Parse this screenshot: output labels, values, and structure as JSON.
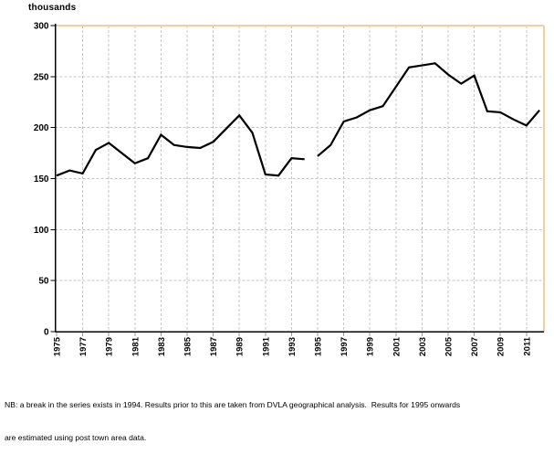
{
  "chart_data": {
    "type": "line",
    "title": "",
    "ylabel": "thousands",
    "xlabel": "",
    "ylim": [
      0,
      300
    ],
    "xlim": [
      1975,
      2012
    ],
    "grid": true,
    "legend": "none",
    "line_color": "#000000",
    "grid_color": "#c6c6c6",
    "border_accent_color": "#f6cea4",
    "yticks": [
      0,
      50,
      100,
      150,
      200,
      250,
      300
    ],
    "xticks": [
      1975,
      1977,
      1979,
      1981,
      1983,
      1985,
      1987,
      1989,
      1991,
      1993,
      1995,
      1997,
      1999,
      2001,
      2003,
      2005,
      2007,
      2009,
      2011
    ],
    "series": [
      {
        "name": "1975-1994 (DVLA geographical analysis)",
        "x": [
          1975,
          1976,
          1977,
          1978,
          1979,
          1980,
          1981,
          1982,
          1983,
          1984,
          1985,
          1986,
          1987,
          1988,
          1989,
          1990,
          1991,
          1992,
          1993,
          1994
        ],
        "values": [
          153,
          158,
          155,
          178,
          185,
          175,
          165,
          170,
          193,
          183,
          181,
          180,
          186,
          199,
          212,
          195,
          154,
          153,
          170,
          169
        ]
      },
      {
        "name": "1995-2012 (post town area data)",
        "x": [
          1995,
          1996,
          1997,
          1998,
          1999,
          2000,
          2001,
          2002,
          2003,
          2004,
          2005,
          2006,
          2007,
          2008,
          2009,
          2010,
          2011,
          2012
        ],
        "values": [
          172,
          183,
          206,
          210,
          217,
          221,
          240,
          259,
          261,
          263,
          252,
          243,
          251,
          216,
          215,
          208,
          202,
          217
        ]
      }
    ],
    "note_lines": [
      "NB: a break in the series exists in 1994. Results prior to this are taken from DVLA geographical analysis.  Results for 1995 onwards",
      "are estimated using post town area data."
    ]
  }
}
